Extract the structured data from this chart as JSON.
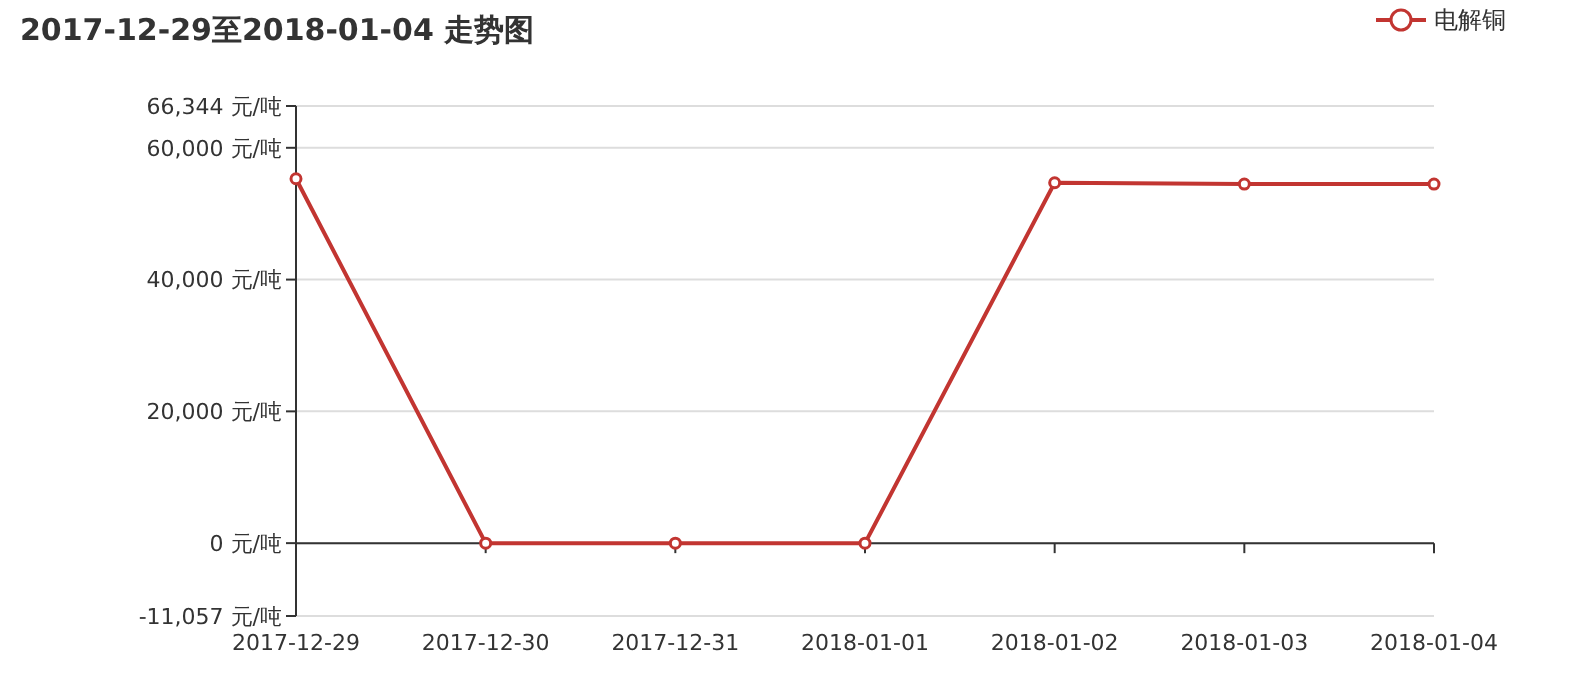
{
  "chart_data": {
    "type": "line",
    "title": "2017-12-29至2018-01-04 走势图",
    "categories": [
      "2017-12-29",
      "2017-12-30",
      "2017-12-31",
      "2018-01-01",
      "2018-01-02",
      "2018-01-03",
      "2018-01-04"
    ],
    "series": [
      {
        "name": "电解铜",
        "color": "#c23531",
        "values": [
          55300,
          0,
          0,
          0,
          54700,
          54500,
          54500
        ]
      }
    ],
    "ylim": [
      -11057,
      66344
    ],
    "yticks": [
      {
        "value": -11057,
        "label": "-11,057 元/吨"
      },
      {
        "value": 0,
        "label": "0 元/吨"
      },
      {
        "value": 20000,
        "label": "20,000 元/吨"
      },
      {
        "value": 40000,
        "label": "40,000 元/吨"
      },
      {
        "value": 60000,
        "label": "60,000 元/吨"
      },
      {
        "value": 66344,
        "label": "66,344 元/吨"
      }
    ],
    "grid": "y",
    "legend": "top right",
    "marker": "circle",
    "line_style": "solid"
  }
}
